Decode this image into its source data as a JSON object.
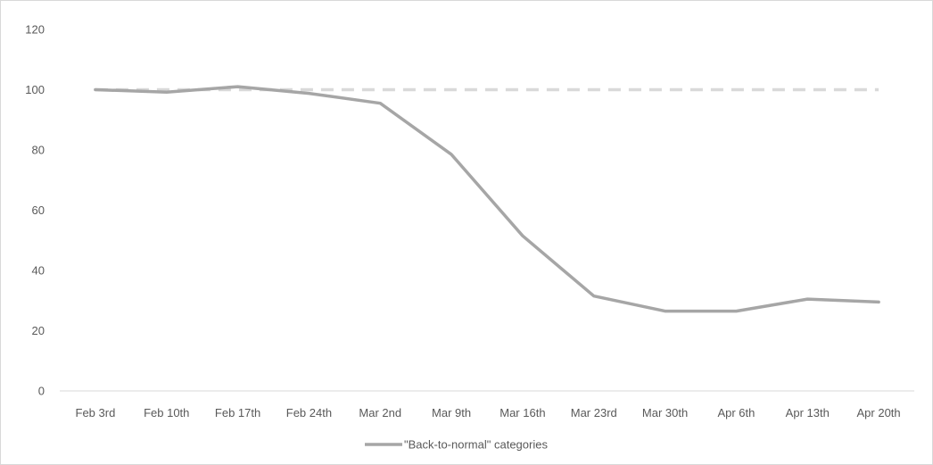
{
  "chart_data": {
    "type": "line",
    "title": "",
    "xlabel": "",
    "ylabel": "",
    "categories": [
      "Feb 3rd",
      "Feb 10th",
      "Feb 17th",
      "Feb 24th",
      "Mar 2nd",
      "Mar 9th",
      "Mar 16th",
      "Mar 23rd",
      "Mar 30th",
      "Apr 6th",
      "Apr 13th",
      "Apr 20th"
    ],
    "ylim": [
      0,
      120
    ],
    "yticks": [
      0,
      20,
      40,
      60,
      80,
      100,
      120
    ],
    "grid": false,
    "legend_position": "bottom",
    "series": [
      {
        "name": "\"Back-to-normal\" categories",
        "values": [
          100,
          99.2,
          101,
          98.8,
          95.5,
          78.5,
          51.5,
          31.5,
          26.5,
          26.5,
          30.5,
          29.5
        ],
        "color": "#a6a6a6",
        "style": "solid"
      },
      {
        "values": [
          100,
          100,
          100,
          100,
          100,
          100,
          100,
          100,
          100,
          100,
          100,
          100
        ],
        "color": "#d9d9d9",
        "style": "dashed"
      }
    ]
  }
}
